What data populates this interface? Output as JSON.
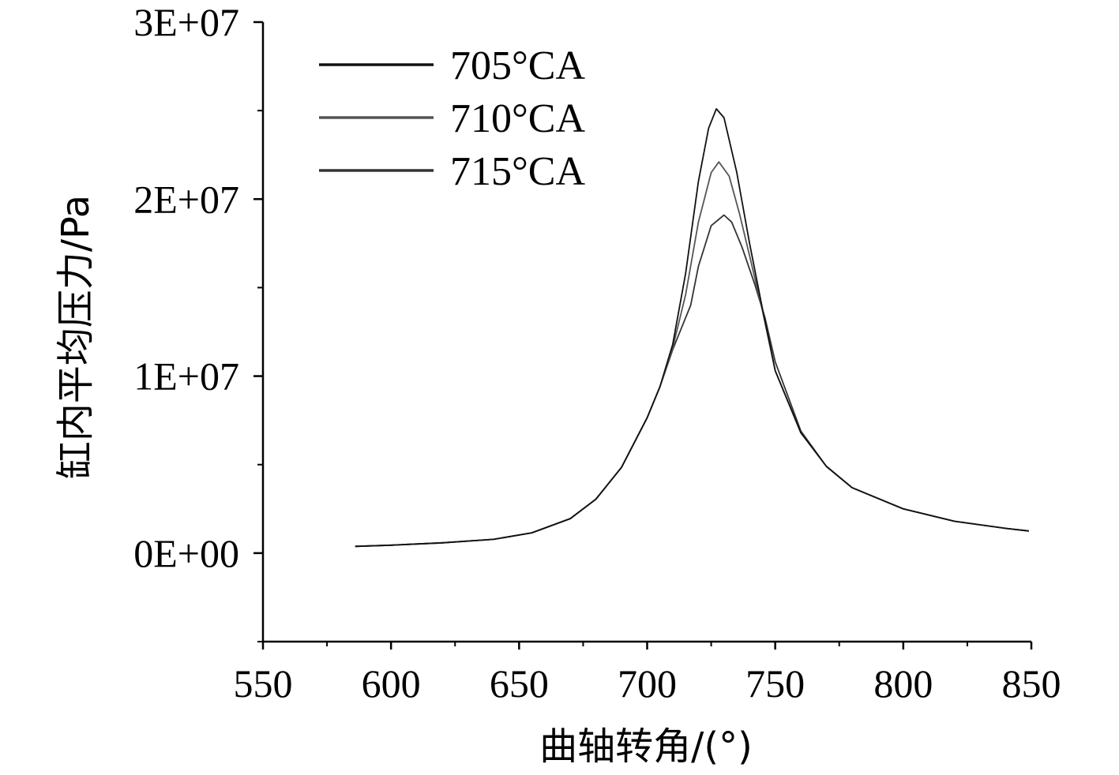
{
  "chart_data": {
    "type": "line",
    "title": "",
    "xlabel": "曲轴转角/(°)",
    "ylabel": "缸内平均压力/Pa",
    "xlim": [
      550,
      850
    ],
    "ylim": [
      -5000000,
      30000000
    ],
    "xticks": [
      550,
      600,
      650,
      700,
      750,
      800,
      850
    ],
    "xtick_labels": [
      "550",
      "600",
      "650",
      "700",
      "750",
      "800",
      "850"
    ],
    "yticks": [
      0,
      10000000,
      20000000,
      30000000
    ],
    "ytick_labels": [
      "0E+00",
      "1E+07",
      "2E+07",
      "3E+07"
    ],
    "grid": false,
    "legend_position": "top-left",
    "series": [
      {
        "name": "705°CA",
        "color": "#111111",
        "x": [
          586,
          600,
          620,
          640,
          655,
          670,
          680,
          690,
          700,
          705,
          710,
          715,
          720,
          724,
          727,
          730,
          735,
          740,
          745,
          750,
          760,
          770,
          780,
          800,
          820,
          840,
          849
        ],
        "y": [
          380000,
          450000,
          580000,
          780000,
          1150000,
          1950000,
          3050000,
          4850000,
          7650000,
          9400000,
          11800000,
          15800000,
          21000000,
          24000000,
          25100000,
          24600000,
          21500000,
          17500000,
          13800000,
          10300000,
          6800000,
          4900000,
          3700000,
          2500000,
          1800000,
          1400000,
          1250000
        ]
      },
      {
        "name": "710°CA",
        "color": "#555555",
        "x": [
          586,
          600,
          620,
          640,
          655,
          670,
          680,
          690,
          700,
          705,
          710,
          715,
          720,
          725,
          728,
          732,
          736,
          740,
          745,
          750,
          760,
          770,
          780,
          800,
          820,
          840,
          849
        ],
        "y": [
          380000,
          450000,
          580000,
          780000,
          1150000,
          1950000,
          3050000,
          4850000,
          7650000,
          9400000,
          11600000,
          14600000,
          18700000,
          21500000,
          22100000,
          21300000,
          19200000,
          16800000,
          13700000,
          10300000,
          6800000,
          4900000,
          3700000,
          2500000,
          1800000,
          1400000,
          1250000
        ]
      },
      {
        "name": "715°CA",
        "color": "#333333",
        "x": [
          586,
          600,
          620,
          640,
          655,
          670,
          680,
          690,
          700,
          705,
          710,
          715,
          717,
          720,
          725,
          730,
          733,
          737,
          742,
          746,
          750,
          760,
          770,
          780,
          800,
          820,
          840,
          849
        ],
        "y": [
          380000,
          450000,
          580000,
          780000,
          1150000,
          1950000,
          3050000,
          4850000,
          7650000,
          9400000,
          11500000,
          13300000,
          14000000,
          16200000,
          18500000,
          19100000,
          18700000,
          17300000,
          15200000,
          13300000,
          10800000,
          6900000,
          4900000,
          3700000,
          2500000,
          1800000,
          1400000,
          1250000
        ]
      }
    ]
  }
}
